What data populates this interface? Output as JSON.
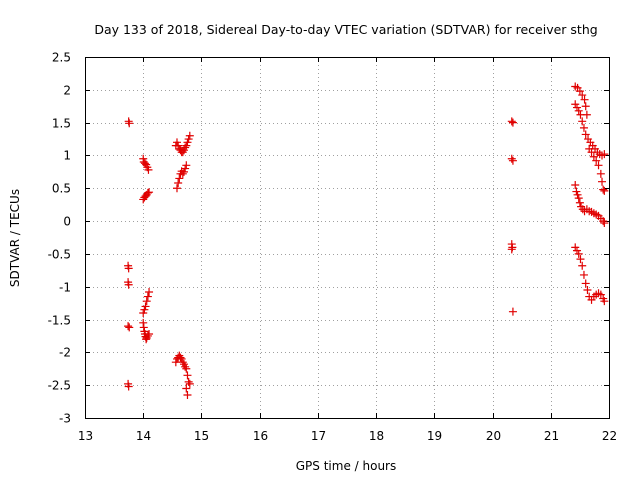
{
  "chart_data": {
    "type": "scatter",
    "title": "Day 133 of 2018, Sidereal Day-to-day VTEC variation (SDTVAR) for receiver sthg",
    "xlabel": "GPS time / hours",
    "ylabel": "SDTVAR / TECUs",
    "xlim": [
      13,
      22
    ],
    "ylim": [
      -3,
      2.5
    ],
    "xticks": [
      "13",
      "14",
      "15",
      "16",
      "17",
      "18",
      "19",
      "20",
      "21",
      "22"
    ],
    "yticks": [
      "-3",
      "-2.5",
      "-2",
      "-1.5",
      "-1",
      "-0.5",
      "0",
      "0.5",
      "1",
      "1.5",
      "2",
      "2.5"
    ],
    "grid": true,
    "marker": "+",
    "marker_color": "#e00000",
    "series": [
      {
        "name": "sdtvar",
        "points": [
          [
            13.75,
            1.52
          ],
          [
            13.76,
            1.49
          ],
          [
            13.74,
            -0.68
          ],
          [
            13.75,
            -0.72
          ],
          [
            13.74,
            -0.93
          ],
          [
            13.75,
            -0.97
          ],
          [
            13.74,
            -1.6
          ],
          [
            13.76,
            -1.62
          ],
          [
            13.74,
            -2.48
          ],
          [
            13.75,
            -2.52
          ],
          [
            14.0,
            0.95
          ],
          [
            14.01,
            0.9
          ],
          [
            14.03,
            0.88
          ],
          [
            14.05,
            0.86
          ],
          [
            14.07,
            0.82
          ],
          [
            14.09,
            0.78
          ],
          [
            14.0,
            0.33
          ],
          [
            14.02,
            0.36
          ],
          [
            14.04,
            0.38
          ],
          [
            14.06,
            0.4
          ],
          [
            14.08,
            0.43
          ],
          [
            14.1,
            0.44
          ],
          [
            14.0,
            -1.4
          ],
          [
            14.02,
            -1.35
          ],
          [
            14.04,
            -1.3
          ],
          [
            14.06,
            -1.22
          ],
          [
            14.08,
            -1.15
          ],
          [
            14.1,
            -1.08
          ],
          [
            14.0,
            -1.55
          ],
          [
            14.01,
            -1.62
          ],
          [
            14.02,
            -1.68
          ],
          [
            14.03,
            -1.72
          ],
          [
            14.04,
            -1.76
          ],
          [
            14.05,
            -1.8
          ],
          [
            14.06,
            -1.78
          ],
          [
            14.08,
            -1.75
          ],
          [
            14.1,
            -1.72
          ],
          [
            14.58,
            0.5
          ],
          [
            14.6,
            0.58
          ],
          [
            14.62,
            0.65
          ],
          [
            14.64,
            0.72
          ],
          [
            14.66,
            0.76
          ],
          [
            14.68,
            0.72
          ],
          [
            14.7,
            0.75
          ],
          [
            14.72,
            0.8
          ],
          [
            14.74,
            0.85
          ],
          [
            14.56,
            1.15
          ],
          [
            14.58,
            1.2
          ],
          [
            14.6,
            1.15
          ],
          [
            14.62,
            1.1
          ],
          [
            14.64,
            1.08
          ],
          [
            14.66,
            1.05
          ],
          [
            14.68,
            1.05
          ],
          [
            14.7,
            1.08
          ],
          [
            14.72,
            1.12
          ],
          [
            14.74,
            1.15
          ],
          [
            14.76,
            1.2
          ],
          [
            14.78,
            1.25
          ],
          [
            14.8,
            1.3
          ],
          [
            14.56,
            -2.15
          ],
          [
            14.58,
            -2.1
          ],
          [
            14.6,
            -2.08
          ],
          [
            14.62,
            -2.05
          ],
          [
            14.64,
            -2.08
          ],
          [
            14.66,
            -2.1
          ],
          [
            14.68,
            -2.15
          ],
          [
            14.7,
            -2.18
          ],
          [
            14.72,
            -2.22
          ],
          [
            14.74,
            -2.25
          ],
          [
            14.76,
            -2.35
          ],
          [
            14.78,
            -2.45
          ],
          [
            14.8,
            -2.48
          ],
          [
            14.74,
            -2.55
          ],
          [
            14.76,
            -2.65
          ],
          [
            20.33,
            1.52
          ],
          [
            20.35,
            1.5
          ],
          [
            20.33,
            0.95
          ],
          [
            20.35,
            0.92
          ],
          [
            20.33,
            -0.35
          ],
          [
            20.34,
            -0.4
          ],
          [
            20.33,
            -0.43
          ],
          [
            20.35,
            -1.38
          ],
          [
            21.42,
            2.05
          ],
          [
            21.46,
            2.03
          ],
          [
            21.5,
            1.98
          ],
          [
            21.54,
            1.92
          ],
          [
            21.58,
            1.85
          ],
          [
            21.6,
            1.75
          ],
          [
            21.62,
            1.62
          ],
          [
            21.42,
            1.78
          ],
          [
            21.45,
            1.73
          ],
          [
            21.48,
            1.68
          ],
          [
            21.51,
            1.62
          ],
          [
            21.54,
            1.52
          ],
          [
            21.57,
            1.42
          ],
          [
            21.6,
            1.32
          ],
          [
            21.64,
            1.25
          ],
          [
            21.68,
            1.2
          ],
          [
            21.72,
            1.15
          ],
          [
            21.76,
            1.1
          ],
          [
            21.8,
            1.05
          ],
          [
            21.84,
            1.02
          ],
          [
            21.88,
            1.0
          ],
          [
            21.92,
            1.02
          ],
          [
            21.66,
            1.1
          ],
          [
            21.7,
            1.05
          ],
          [
            21.74,
            0.98
          ],
          [
            21.78,
            0.92
          ],
          [
            21.82,
            0.85
          ],
          [
            21.86,
            0.72
          ],
          [
            21.88,
            0.6
          ],
          [
            21.9,
            0.48
          ],
          [
            21.92,
            0.46
          ],
          [
            21.42,
            0.55
          ],
          [
            21.44,
            0.45
          ],
          [
            21.46,
            0.4
          ],
          [
            21.48,
            0.35
          ],
          [
            21.5,
            0.28
          ],
          [
            21.52,
            0.22
          ],
          [
            21.55,
            0.18
          ],
          [
            21.58,
            0.15
          ],
          [
            21.62,
            0.18
          ],
          [
            21.66,
            0.15
          ],
          [
            21.7,
            0.14
          ],
          [
            21.74,
            0.12
          ],
          [
            21.78,
            0.1
          ],
          [
            21.82,
            0.08
          ],
          [
            21.86,
            0.04
          ],
          [
            21.9,
            0.0
          ],
          [
            21.92,
            -0.03
          ],
          [
            21.42,
            -0.4
          ],
          [
            21.45,
            -0.45
          ],
          [
            21.48,
            -0.5
          ],
          [
            21.51,
            -0.58
          ],
          [
            21.54,
            -0.68
          ],
          [
            21.57,
            -0.82
          ],
          [
            21.6,
            -0.95
          ],
          [
            21.63,
            -1.05
          ],
          [
            21.66,
            -1.15
          ],
          [
            21.7,
            -1.2
          ],
          [
            21.74,
            -1.15
          ],
          [
            21.78,
            -1.12
          ],
          [
            21.82,
            -1.1
          ],
          [
            21.86,
            -1.12
          ],
          [
            21.9,
            -1.18
          ],
          [
            21.92,
            -1.22
          ]
        ]
      }
    ]
  }
}
